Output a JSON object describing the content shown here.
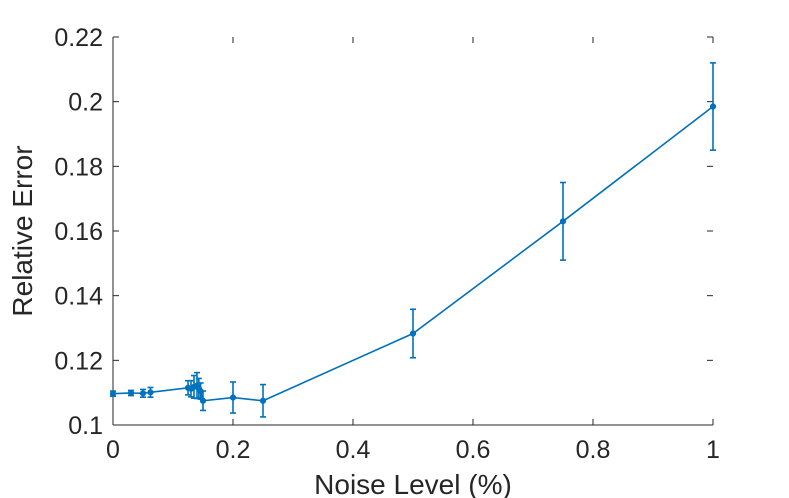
{
  "chart_data": {
    "type": "line",
    "title": "",
    "xlabel": "Noise Level (%)",
    "ylabel": "Relative Error",
    "xlim": [
      0,
      1
    ],
    "ylim": [
      0.1,
      0.22
    ],
    "xticks": [
      0,
      0.2,
      0.4,
      0.6,
      0.8,
      1
    ],
    "xtick_labels": [
      "0",
      "0.2",
      "0.4",
      "0.6",
      "0.8",
      "1"
    ],
    "yticks": [
      0.1,
      0.12,
      0.14,
      0.16,
      0.18,
      0.2,
      0.22
    ],
    "ytick_labels": [
      "0.1",
      "0.12",
      "0.14",
      "0.16",
      "0.18",
      "0.2",
      "0.22"
    ],
    "grid": false,
    "color": "#0072BD",
    "series": [
      {
        "name": "Relative Error",
        "points": [
          {
            "x": 0.0,
            "y": 0.1097,
            "err": 0.0008
          },
          {
            "x": 0.03,
            "y": 0.1099,
            "err": 0.0008
          },
          {
            "x": 0.05,
            "y": 0.1098,
            "err": 0.0012
          },
          {
            "x": 0.0625,
            "y": 0.1101,
            "err": 0.0015
          },
          {
            "x": 0.125,
            "y": 0.1115,
            "err": 0.0022
          },
          {
            "x": 0.13,
            "y": 0.1112,
            "err": 0.0025
          },
          {
            "x": 0.135,
            "y": 0.1118,
            "err": 0.0035
          },
          {
            "x": 0.14,
            "y": 0.1122,
            "err": 0.004
          },
          {
            "x": 0.143,
            "y": 0.1114,
            "err": 0.003
          },
          {
            "x": 0.146,
            "y": 0.1105,
            "err": 0.0025
          },
          {
            "x": 0.15,
            "y": 0.1075,
            "err": 0.003
          },
          {
            "x": 0.2,
            "y": 0.1085,
            "err": 0.0048
          },
          {
            "x": 0.25,
            "y": 0.1075,
            "err": 0.005
          },
          {
            "x": 0.5,
            "y": 0.1283,
            "err": 0.0075
          },
          {
            "x": 0.75,
            "y": 0.163,
            "err": 0.012
          },
          {
            "x": 1.0,
            "y": 0.1985,
            "err": 0.0135
          }
        ]
      }
    ]
  }
}
